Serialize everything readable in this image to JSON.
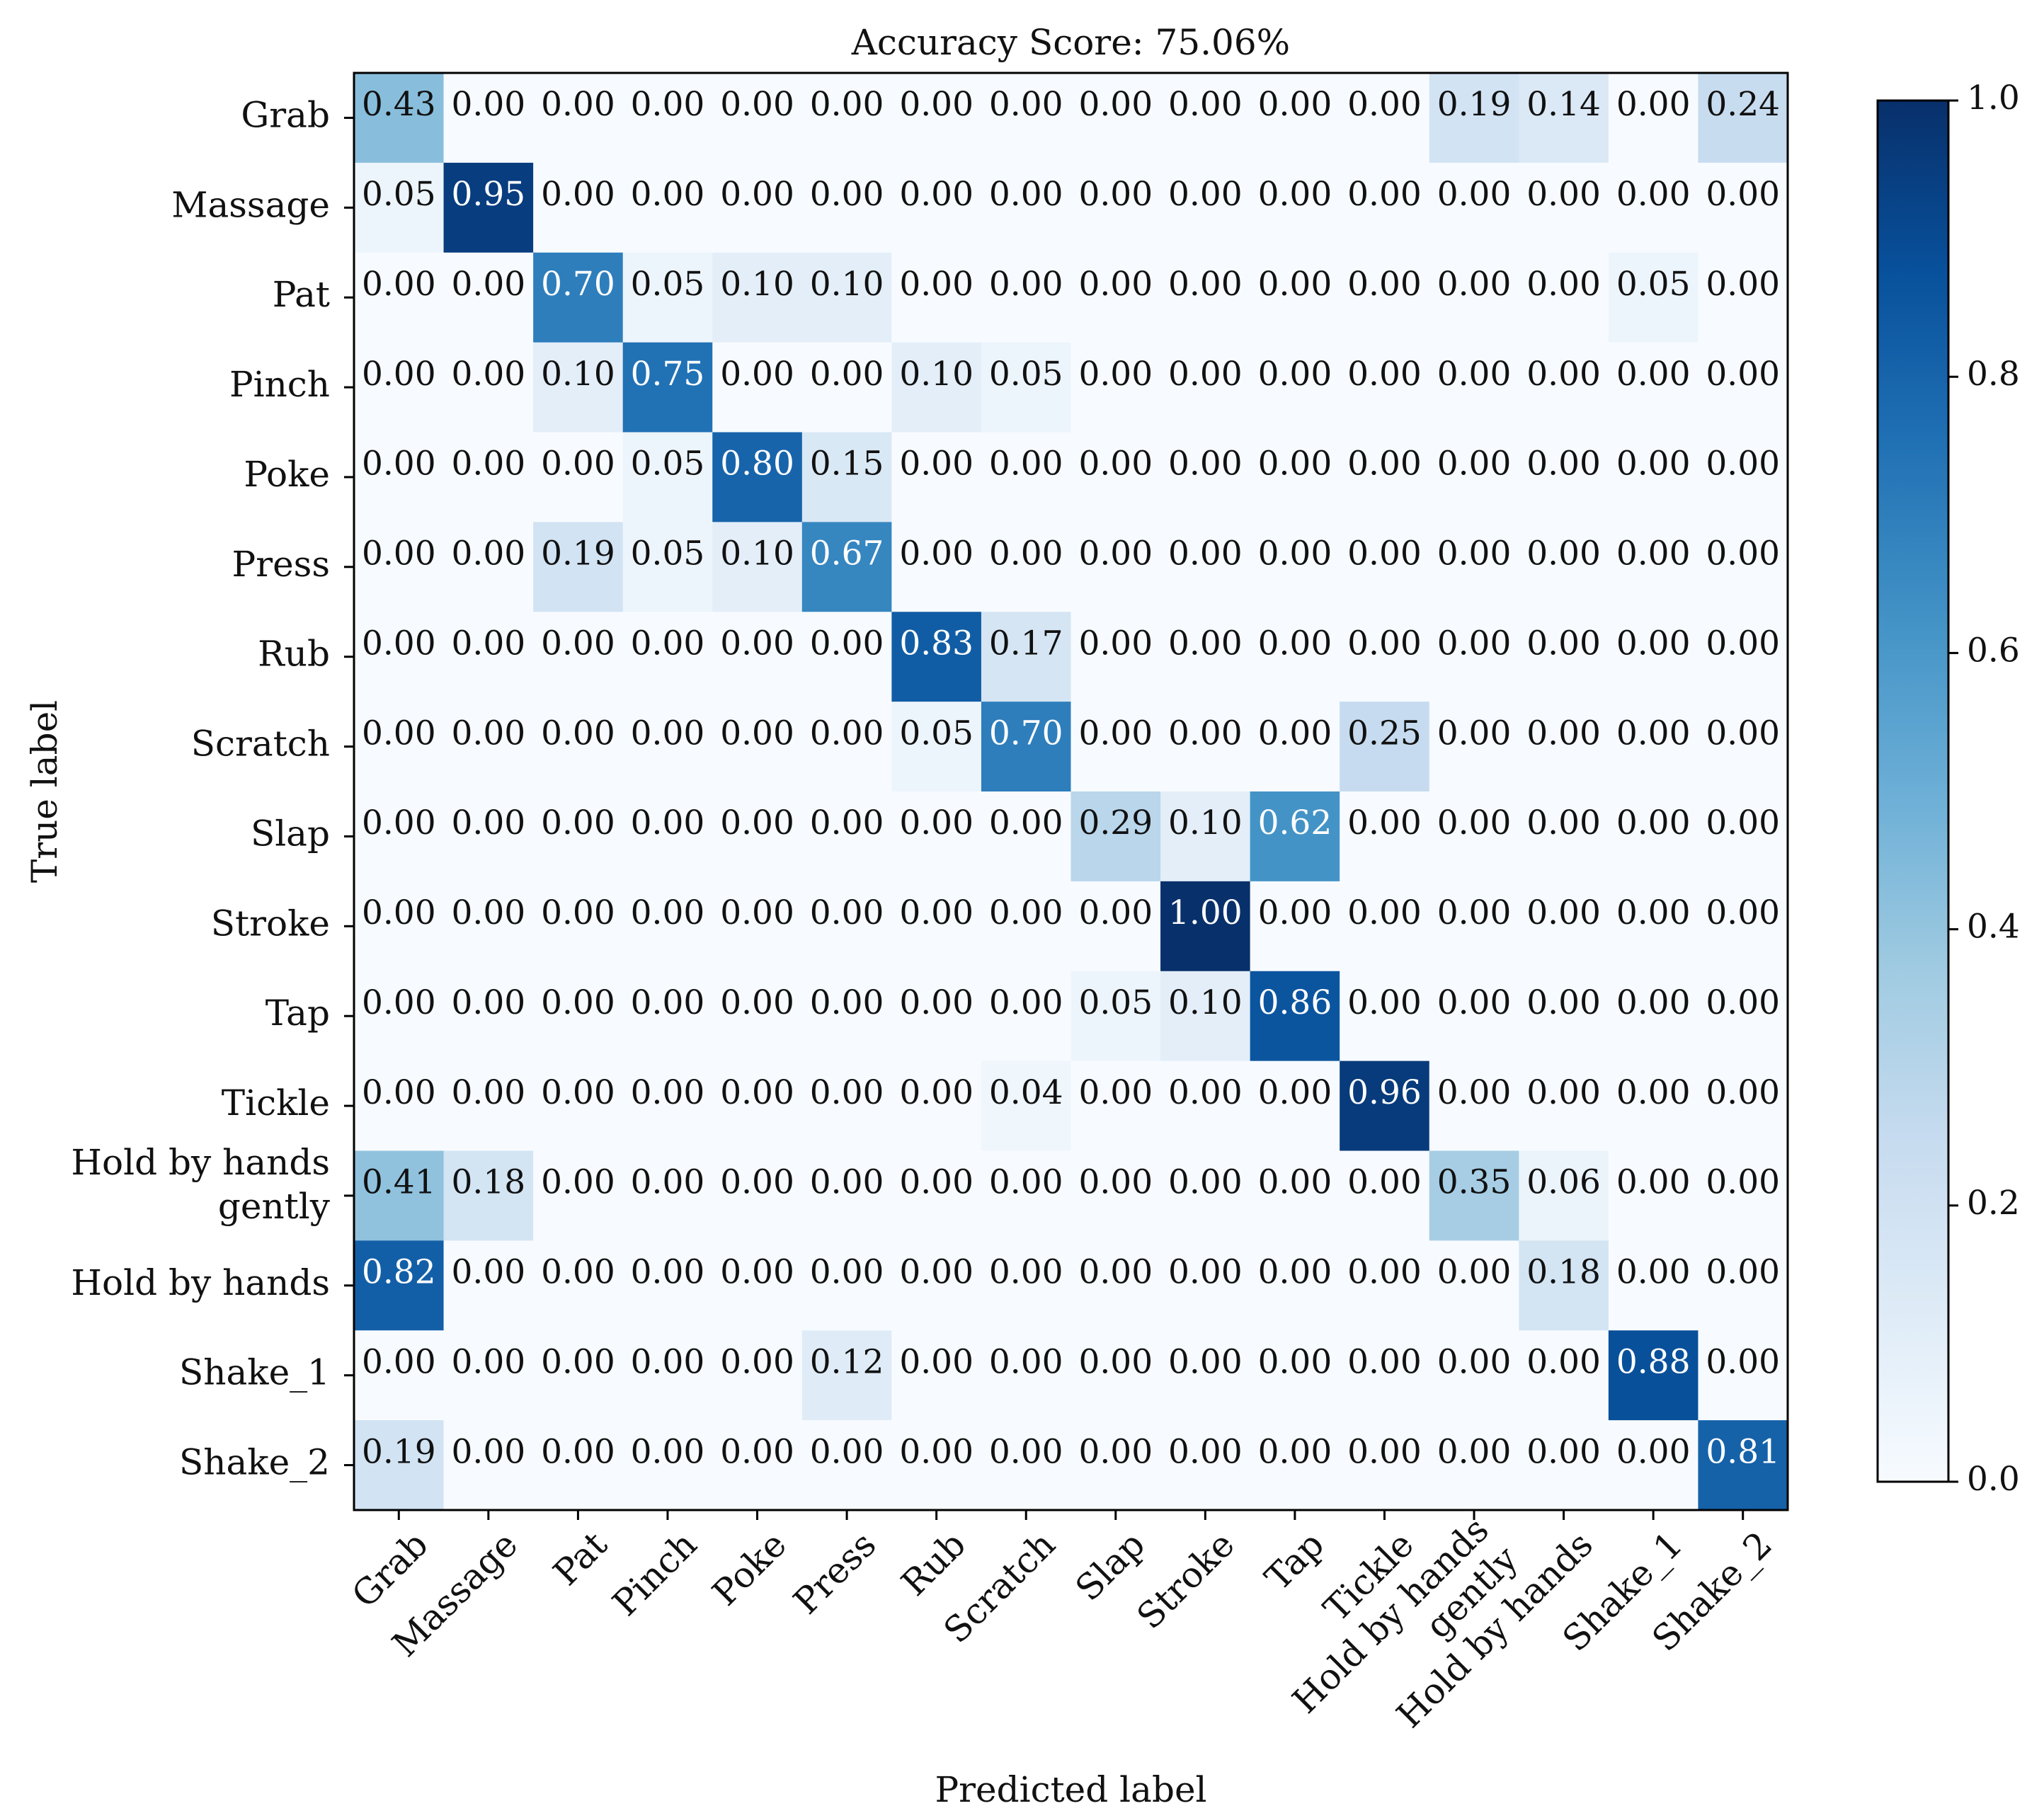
{
  "chart_data": {
    "type": "heatmap",
    "title": "Accuracy Score: 75.06%",
    "xlabel": "Predicted label",
    "ylabel": "True label",
    "row_labels": [
      [
        "Grab"
      ],
      [
        "Massage"
      ],
      [
        "Pat"
      ],
      [
        "Pinch"
      ],
      [
        "Poke"
      ],
      [
        "Press"
      ],
      [
        "Rub"
      ],
      [
        "Scratch"
      ],
      [
        "Slap"
      ],
      [
        "Stroke"
      ],
      [
        "Tap"
      ],
      [
        "Tickle"
      ],
      [
        "Hold by hands",
        "gently"
      ],
      [
        "Hold by hands"
      ],
      [
        "Shake_1"
      ],
      [
        "Shake_2"
      ]
    ],
    "col_labels": [
      [
        "Grab"
      ],
      [
        "Massage"
      ],
      [
        "Pat"
      ],
      [
        "Pinch"
      ],
      [
        "Poke"
      ],
      [
        "Press"
      ],
      [
        "Rub"
      ],
      [
        "Scratch"
      ],
      [
        "Slap"
      ],
      [
        "Stroke"
      ],
      [
        "Tap"
      ],
      [
        "Tickle"
      ],
      [
        "Hold by hands",
        "gently"
      ],
      [
        "Hold by hands"
      ],
      [
        "Shake_1"
      ],
      [
        "Shake_2"
      ]
    ],
    "values": [
      [
        0.43,
        0.0,
        0.0,
        0.0,
        0.0,
        0.0,
        0.0,
        0.0,
        0.0,
        0.0,
        0.0,
        0.0,
        0.19,
        0.14,
        0.0,
        0.24
      ],
      [
        0.05,
        0.95,
        0.0,
        0.0,
        0.0,
        0.0,
        0.0,
        0.0,
        0.0,
        0.0,
        0.0,
        0.0,
        0.0,
        0.0,
        0.0,
        0.0
      ],
      [
        0.0,
        0.0,
        0.7,
        0.05,
        0.1,
        0.1,
        0.0,
        0.0,
        0.0,
        0.0,
        0.0,
        0.0,
        0.0,
        0.0,
        0.05,
        0.0
      ],
      [
        0.0,
        0.0,
        0.1,
        0.75,
        0.0,
        0.0,
        0.1,
        0.05,
        0.0,
        0.0,
        0.0,
        0.0,
        0.0,
        0.0,
        0.0,
        0.0
      ],
      [
        0.0,
        0.0,
        0.0,
        0.05,
        0.8,
        0.15,
        0.0,
        0.0,
        0.0,
        0.0,
        0.0,
        0.0,
        0.0,
        0.0,
        0.0,
        0.0
      ],
      [
        0.0,
        0.0,
        0.19,
        0.05,
        0.1,
        0.67,
        0.0,
        0.0,
        0.0,
        0.0,
        0.0,
        0.0,
        0.0,
        0.0,
        0.0,
        0.0
      ],
      [
        0.0,
        0.0,
        0.0,
        0.0,
        0.0,
        0.0,
        0.83,
        0.17,
        0.0,
        0.0,
        0.0,
        0.0,
        0.0,
        0.0,
        0.0,
        0.0
      ],
      [
        0.0,
        0.0,
        0.0,
        0.0,
        0.0,
        0.0,
        0.05,
        0.7,
        0.0,
        0.0,
        0.0,
        0.25,
        0.0,
        0.0,
        0.0,
        0.0
      ],
      [
        0.0,
        0.0,
        0.0,
        0.0,
        0.0,
        0.0,
        0.0,
        0.0,
        0.29,
        0.1,
        0.62,
        0.0,
        0.0,
        0.0,
        0.0,
        0.0
      ],
      [
        0.0,
        0.0,
        0.0,
        0.0,
        0.0,
        0.0,
        0.0,
        0.0,
        0.0,
        1.0,
        0.0,
        0.0,
        0.0,
        0.0,
        0.0,
        0.0
      ],
      [
        0.0,
        0.0,
        0.0,
        0.0,
        0.0,
        0.0,
        0.0,
        0.0,
        0.05,
        0.1,
        0.86,
        0.0,
        0.0,
        0.0,
        0.0,
        0.0
      ],
      [
        0.0,
        0.0,
        0.0,
        0.0,
        0.0,
        0.0,
        0.0,
        0.04,
        0.0,
        0.0,
        0.0,
        0.96,
        0.0,
        0.0,
        0.0,
        0.0
      ],
      [
        0.41,
        0.18,
        0.0,
        0.0,
        0.0,
        0.0,
        0.0,
        0.0,
        0.0,
        0.0,
        0.0,
        0.0,
        0.35,
        0.06,
        0.0,
        0.0
      ],
      [
        0.82,
        0.0,
        0.0,
        0.0,
        0.0,
        0.0,
        0.0,
        0.0,
        0.0,
        0.0,
        0.0,
        0.0,
        0.0,
        0.18,
        0.0,
        0.0
      ],
      [
        0.0,
        0.0,
        0.0,
        0.0,
        0.0,
        0.12,
        0.0,
        0.0,
        0.0,
        0.0,
        0.0,
        0.0,
        0.0,
        0.0,
        0.88,
        0.0
      ],
      [
        0.19,
        0.0,
        0.0,
        0.0,
        0.0,
        0.0,
        0.0,
        0.0,
        0.0,
        0.0,
        0.0,
        0.0,
        0.0,
        0.0,
        0.0,
        0.81
      ]
    ],
    "colorbar": {
      "min": 0.0,
      "max": 1.0,
      "ticks": [
        0.0,
        0.2,
        0.4,
        0.6,
        0.8,
        1.0
      ],
      "tick_labels": [
        "0.0",
        "0.2",
        "0.4",
        "0.6",
        "0.8",
        "1.0"
      ],
      "colormap": "Blues",
      "colors": [
        "#f7fbff",
        "#deebf7",
        "#c6dbef",
        "#9ecae1",
        "#6baed6",
        "#4292c6",
        "#2171b5",
        "#08519c",
        "#08306b"
      ]
    },
    "value_format_decimals": 2,
    "text_color_light": "#ffffff",
    "text_color_dark": "#111111"
  }
}
